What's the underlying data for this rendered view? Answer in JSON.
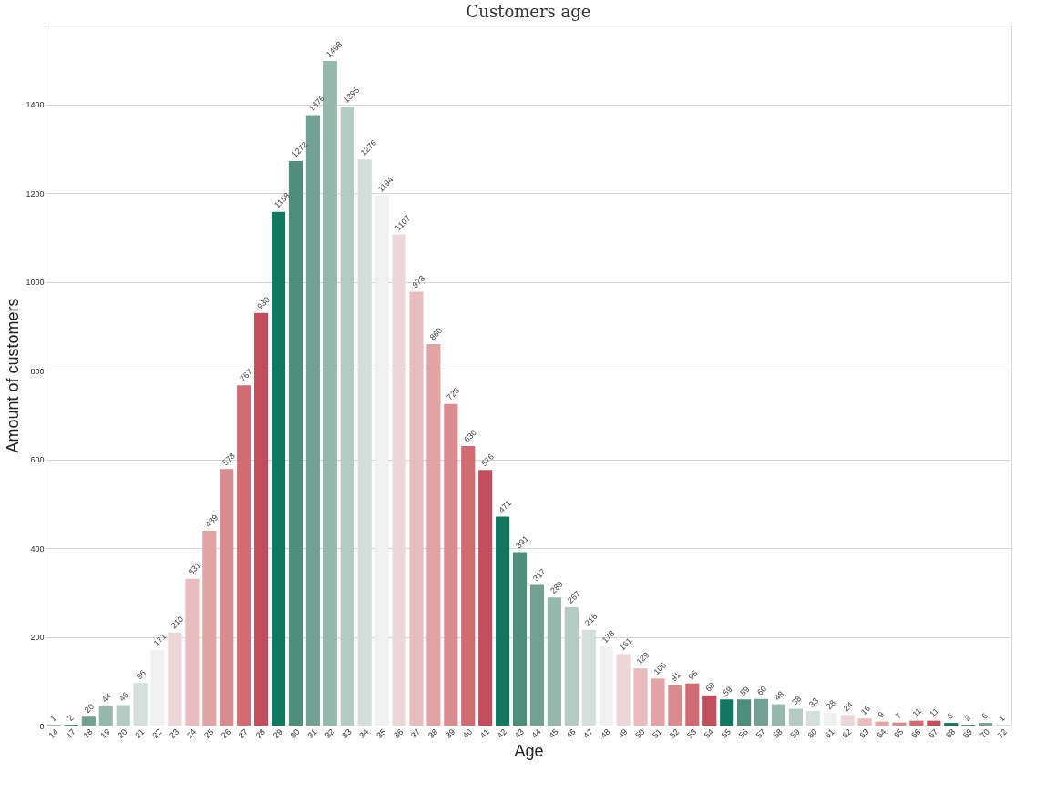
{
  "chart_data": {
    "type": "bar",
    "title": "Customers age",
    "xlabel": "Age",
    "ylabel": "Amount of customers",
    "categories": [
      "14",
      "17",
      "18",
      "19",
      "20",
      "21",
      "22",
      "23",
      "24",
      "25",
      "26",
      "27",
      "28",
      "29",
      "30",
      "31",
      "32",
      "33",
      "34",
      "35",
      "36",
      "37",
      "38",
      "39",
      "40",
      "41",
      "42",
      "43",
      "44",
      "45",
      "46",
      "47",
      "48",
      "49",
      "50",
      "51",
      "52",
      "53",
      "54",
      "55",
      "56",
      "57",
      "58",
      "59",
      "60",
      "61",
      "62",
      "63",
      "64",
      "65",
      "66",
      "67",
      "68",
      "69",
      "70",
      "72"
    ],
    "values": [
      1,
      2,
      20,
      44,
      46,
      96,
      171,
      210,
      331,
      439,
      578,
      767,
      930,
      1158,
      1272,
      1376,
      1498,
      1395,
      1276,
      1194,
      1107,
      978,
      860,
      725,
      630,
      576,
      471,
      391,
      317,
      289,
      267,
      216,
      178,
      161,
      129,
      106,
      91,
      95,
      68,
      59,
      59,
      60,
      48,
      38,
      33,
      28,
      24,
      16,
      9,
      7,
      11,
      11,
      6,
      2,
      6,
      1
    ],
    "colors": [
      "#127760",
      "#4e8f7b",
      "#72a193",
      "#94b8ab",
      "#b3cbc2",
      "#d3dfdb",
      "#f0f0f0",
      "#ecd7d8",
      "#e9bcbe",
      "#e2a3a5",
      "#d98b8e",
      "#d06b72",
      "#c24e5c",
      "#127760",
      "#4e8f7b",
      "#72a193",
      "#94b8ab",
      "#b3cbc2",
      "#d3dfdb",
      "#f0f0f0",
      "#ecd7d8",
      "#e9bcbe",
      "#e2a3a5",
      "#d98b8e",
      "#d06b72",
      "#c24e5c",
      "#127760",
      "#4e8f7b",
      "#72a193",
      "#94b8ab",
      "#b3cbc2",
      "#d3dfdb",
      "#f0f0f0",
      "#ecd7d8",
      "#e9bcbe",
      "#e2a3a5",
      "#d98b8e",
      "#d06b72",
      "#c24e5c",
      "#127760",
      "#4e8f7b",
      "#72a193",
      "#94b8ab",
      "#b3cbc2",
      "#d3dfdb",
      "#f0f0f0",
      "#ecd7d8",
      "#e9bcbe",
      "#e2a3a5",
      "#d98b8e",
      "#d06b72",
      "#c24e5c",
      "#127760",
      "#4e8f7b",
      "#72a193",
      "#94b8ab"
    ],
    "ylim": [
      0,
      1580
    ],
    "yticks": [
      0,
      200,
      400,
      600,
      800,
      1000,
      1200,
      1400
    ],
    "grid": "y",
    "data_labels": true
  }
}
